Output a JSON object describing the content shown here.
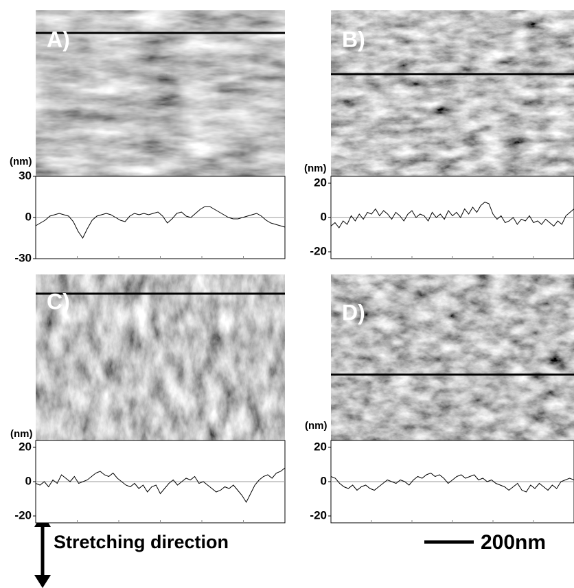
{
  "chart_data": [
    {
      "type": "line",
      "title": "A)",
      "y_label": "(nm)",
      "ylim": [
        -30,
        30
      ],
      "yticks": [
        30,
        0,
        -30
      ],
      "color": "#000000",
      "values": [
        -6,
        -4,
        -2,
        1,
        2,
        3,
        2,
        1,
        -3,
        -10,
        -15,
        -8,
        -2,
        1,
        2,
        3,
        2,
        0,
        -2,
        -3,
        1,
        3,
        2,
        3,
        2,
        3,
        4,
        1,
        -4,
        -1,
        3,
        4,
        1,
        0,
        3,
        6,
        8,
        8,
        6,
        4,
        2,
        0,
        -1,
        -1,
        0,
        1,
        2,
        3,
        1,
        -2,
        -4,
        -5,
        -6,
        -7
      ]
    },
    {
      "type": "line",
      "title": "B)",
      "y_label": "(nm)",
      "ylim": [
        -24,
        24
      ],
      "yticks": [
        20,
        0,
        -20
      ],
      "color": "#000000",
      "values": [
        -5,
        -3,
        -6,
        -2,
        -4,
        1,
        -2,
        2,
        -1,
        3,
        2,
        5,
        1,
        4,
        2,
        -1,
        3,
        1,
        -2,
        2,
        4,
        0,
        2,
        1,
        -2,
        3,
        0,
        2,
        -1,
        4,
        1,
        3,
        0,
        5,
        2,
        6,
        3,
        7,
        9,
        8,
        2,
        -1,
        1,
        -3,
        -2,
        0,
        -4,
        -1,
        -2,
        1,
        -3,
        -2,
        -4,
        -1,
        -3,
        -5,
        -2,
        -4,
        1,
        3,
        5
      ]
    },
    {
      "type": "line",
      "title": "C)",
      "y_label": "(nm)",
      "ylim": [
        -24,
        24
      ],
      "yticks": [
        20,
        0,
        -20
      ],
      "color": "#000000",
      "values": [
        -1,
        -2,
        0,
        -3,
        1,
        -1,
        4,
        2,
        0,
        3,
        -1,
        0,
        1,
        3,
        5,
        6,
        4,
        3,
        5,
        2,
        0,
        -2,
        -3,
        -1,
        -4,
        -2,
        -6,
        -3,
        -2,
        -7,
        -4,
        -1,
        1,
        -2,
        0,
        2,
        1,
        3,
        -1,
        0,
        -2,
        -4,
        -6,
        -5,
        -3,
        -4,
        -2,
        -5,
        -8,
        -12,
        -7,
        -2,
        1,
        3,
        4,
        2,
        5,
        6,
        8
      ]
    },
    {
      "type": "line",
      "title": "D)",
      "y_label": "(nm)",
      "ylim": [
        -24,
        24
      ],
      "yticks": [
        20,
        0,
        -20
      ],
      "color": "#000000",
      "values": [
        3,
        2,
        -1,
        -3,
        -4,
        -2,
        -5,
        -3,
        -2,
        -4,
        -5,
        -3,
        -1,
        1,
        0,
        -1,
        1,
        0,
        -2,
        1,
        3,
        2,
        4,
        5,
        3,
        4,
        2,
        -1,
        1,
        3,
        4,
        2,
        3,
        4,
        1,
        2,
        0,
        1,
        -1,
        -2,
        -3,
        -5,
        -3,
        -1,
        -5,
        -6,
        -2,
        -4,
        -1,
        -3,
        -5,
        -2,
        -4,
        0,
        1,
        2,
        1
      ]
    }
  ],
  "annotations": {
    "direction": "Stretching direction",
    "scale_bar": "200nm"
  }
}
